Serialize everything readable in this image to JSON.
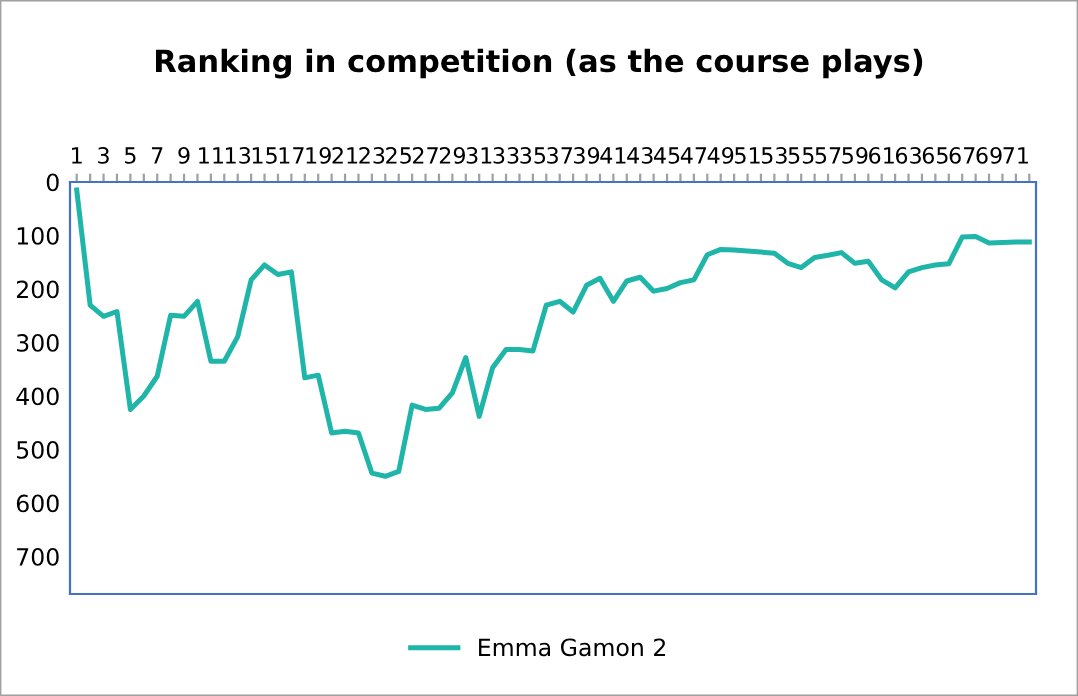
{
  "chart_data": {
    "type": "line",
    "title": "Ranking in competition (as the course plays)",
    "categories": [
      "1",
      null,
      "3",
      null,
      "5",
      null,
      "7",
      null,
      "9",
      null,
      "11",
      null,
      "13",
      null,
      "15",
      null,
      "17",
      null,
      "19",
      null,
      "21",
      null,
      "23",
      null,
      "25",
      null,
      "27",
      null,
      "29",
      null,
      "31",
      null,
      "33",
      null,
      "35",
      null,
      "37",
      null,
      "39",
      null,
      "41",
      null,
      "43",
      null,
      "45",
      null,
      "47",
      null,
      "49",
      null,
      "51",
      null,
      "53",
      null,
      "55",
      null,
      "57",
      null,
      "59",
      null,
      "61",
      null,
      "63",
      null,
      "65",
      null,
      "67",
      null,
      "69",
      null,
      "71",
      null
    ],
    "series": [
      {
        "name": "Emma Gamon 2",
        "color": "#1fb5a8",
        "values": [
          15,
          230,
          251,
          242,
          425,
          400,
          363,
          249,
          251,
          223,
          335,
          335,
          289,
          183,
          155,
          173,
          168,
          366,
          361,
          469,
          466,
          469,
          544,
          550,
          541,
          417,
          425,
          423,
          394,
          328,
          438,
          347,
          313,
          313,
          316,
          230,
          223,
          243,
          193,
          180,
          223,
          185,
          178,
          204,
          199,
          188,
          183,
          136,
          126,
          127,
          129,
          131,
          133,
          152,
          160,
          141,
          137,
          132,
          152,
          148,
          183,
          198,
          168,
          160,
          155,
          153,
          103,
          102,
          114,
          113,
          112,
          112
        ]
      }
    ],
    "ylim": [
      770,
      0
    ],
    "yticks": [
      0,
      100,
      200,
      300,
      400,
      500,
      600,
      700
    ],
    "grid": false,
    "legend": "bottom",
    "marker": "none",
    "line_style": "solid"
  }
}
